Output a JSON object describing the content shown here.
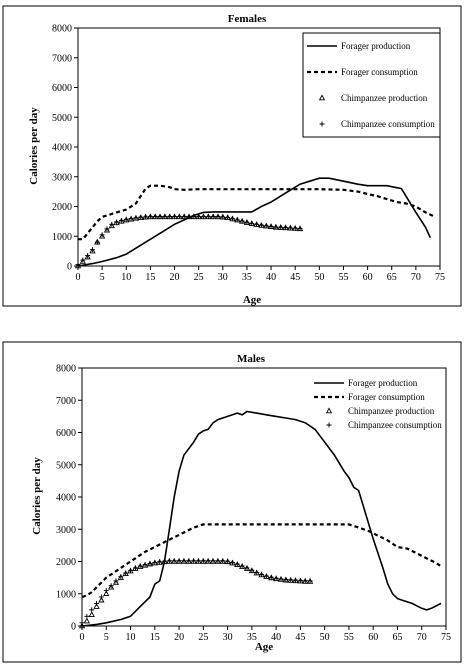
{
  "chart_data": [
    {
      "type": "line",
      "title": "Females",
      "xlabel": "Age",
      "ylabel": "Calories per day",
      "xlim": [
        0,
        75
      ],
      "ylim": [
        0,
        8000
      ],
      "xticks": [
        0,
        5,
        10,
        15,
        20,
        25,
        30,
        35,
        40,
        45,
        50,
        55,
        60,
        65,
        70,
        75
      ],
      "yticks": [
        0,
        1000,
        2000,
        3000,
        4000,
        5000,
        6000,
        7000,
        8000
      ],
      "grid": false,
      "legend_position": "top-right",
      "series": [
        {
          "name": "Forager production",
          "style": "solid",
          "x": [
            0,
            3,
            5,
            8,
            10,
            12,
            14,
            16,
            18,
            20,
            22,
            24,
            26,
            28,
            30,
            33,
            36,
            38,
            40,
            42,
            44,
            46,
            48,
            50,
            52,
            55,
            58,
            60,
            62,
            64,
            67,
            70,
            72,
            73
          ],
          "y": [
            0,
            80,
            150,
            280,
            400,
            600,
            800,
            1000,
            1200,
            1400,
            1550,
            1700,
            1800,
            1820,
            1820,
            1820,
            1820,
            2000,
            2150,
            2350,
            2550,
            2750,
            2850,
            2950,
            2950,
            2850,
            2750,
            2700,
            2700,
            2700,
            2600,
            1800,
            1300,
            950
          ]
        },
        {
          "name": "Forager consumption",
          "style": "dashed",
          "x": [
            0,
            1,
            2,
            3,
            4,
            5,
            6,
            8,
            10,
            12,
            13,
            14,
            15,
            17,
            19,
            20,
            22,
            25,
            30,
            35,
            40,
            45,
            50,
            55,
            58,
            60,
            62,
            64,
            66,
            68,
            70,
            72,
            74
          ],
          "y": [
            900,
            900,
            1100,
            1300,
            1500,
            1650,
            1700,
            1800,
            1900,
            2100,
            2350,
            2600,
            2700,
            2700,
            2650,
            2580,
            2560,
            2580,
            2580,
            2580,
            2580,
            2580,
            2580,
            2560,
            2500,
            2420,
            2350,
            2250,
            2150,
            2100,
            2000,
            1800,
            1650
          ]
        },
        {
          "name": "Chimpanzee production",
          "style": "triangle-markers",
          "x": [
            0,
            1,
            2,
            3,
            4,
            5,
            6,
            7,
            8,
            9,
            10,
            11,
            12,
            13,
            14,
            15,
            16,
            17,
            18,
            19,
            20,
            21,
            22,
            23,
            24,
            25,
            26,
            27,
            28,
            29,
            30,
            31,
            32,
            33,
            34,
            35,
            36,
            37,
            38,
            39,
            40,
            41,
            42,
            43,
            44,
            45,
            46
          ],
          "y": [
            0,
            150,
            300,
            500,
            800,
            1000,
            1200,
            1350,
            1450,
            1500,
            1540,
            1570,
            1600,
            1620,
            1640,
            1650,
            1650,
            1650,
            1650,
            1650,
            1650,
            1650,
            1650,
            1650,
            1650,
            1650,
            1650,
            1650,
            1650,
            1650,
            1640,
            1620,
            1580,
            1540,
            1500,
            1460,
            1420,
            1390,
            1360,
            1340,
            1320,
            1300,
            1290,
            1280,
            1270,
            1260,
            1250
          ]
        },
        {
          "name": "Chimpanzee consumption",
          "style": "plus-markers",
          "x": [
            0,
            1,
            2,
            3,
            4,
            5,
            6,
            7,
            8,
            9,
            10,
            11,
            12,
            13,
            14,
            15,
            16,
            17,
            18,
            19,
            20,
            21,
            22,
            23,
            24,
            25,
            26,
            27,
            28,
            29,
            30,
            31,
            32,
            33,
            34,
            35,
            36,
            37,
            38,
            39,
            40,
            41,
            42,
            43,
            44,
            45,
            46
          ],
          "y": [
            50,
            200,
            350,
            550,
            800,
            1050,
            1250,
            1400,
            1480,
            1530,
            1570,
            1600,
            1620,
            1640,
            1650,
            1660,
            1660,
            1660,
            1660,
            1660,
            1660,
            1660,
            1660,
            1660,
            1660,
            1660,
            1660,
            1660,
            1660,
            1660,
            1650,
            1630,
            1590,
            1550,
            1510,
            1470,
            1430,
            1400,
            1370,
            1350,
            1330,
            1310,
            1300,
            1290,
            1280,
            1270,
            1260
          ]
        }
      ]
    },
    {
      "type": "line",
      "title": "Males",
      "xlabel": "Age",
      "ylabel": "Calories per day",
      "xlim": [
        0,
        75
      ],
      "ylim": [
        0,
        8000
      ],
      "xticks": [
        0,
        5,
        10,
        15,
        20,
        25,
        30,
        35,
        40,
        45,
        50,
        55,
        60,
        65,
        70,
        75
      ],
      "yticks": [
        0,
        1000,
        2000,
        3000,
        4000,
        5000,
        6000,
        7000,
        8000
      ],
      "grid": false,
      "legend_position": "top-right",
      "series": [
        {
          "name": "Forager production",
          "style": "solid",
          "x": [
            0,
            3,
            5,
            8,
            10,
            12,
            14,
            15,
            16,
            17,
            18,
            19,
            20,
            21,
            22,
            23,
            24,
            25,
            26,
            27,
            28,
            30,
            31,
            32,
            33,
            34,
            36,
            38,
            40,
            42,
            44,
            46,
            48,
            50,
            52,
            54,
            55,
            56,
            57,
            58,
            60,
            62,
            63,
            64,
            65,
            66,
            68,
            70,
            71,
            72,
            74
          ],
          "y": [
            0,
            50,
            100,
            200,
            300,
            600,
            900,
            1300,
            1400,
            2000,
            3000,
            4000,
            4800,
            5300,
            5500,
            5700,
            5950,
            6050,
            6100,
            6300,
            6400,
            6500,
            6550,
            6600,
            6550,
            6650,
            6600,
            6550,
            6500,
            6450,
            6400,
            6300,
            6100,
            5700,
            5300,
            4800,
            4600,
            4300,
            4200,
            3700,
            2700,
            1800,
            1300,
            1000,
            850,
            800,
            700,
            550,
            500,
            550,
            700
          ]
        },
        {
          "name": "Forager consumption",
          "style": "dashed",
          "x": [
            0,
            1,
            2,
            3,
            4,
            5,
            7,
            9,
            11,
            13,
            15,
            17,
            19,
            21,
            23,
            25,
            30,
            35,
            40,
            45,
            50,
            55,
            57,
            59,
            61,
            63,
            65,
            67,
            69,
            71,
            73,
            74
          ],
          "y": [
            900,
            950,
            1050,
            1200,
            1350,
            1500,
            1700,
            1900,
            2100,
            2300,
            2450,
            2600,
            2750,
            2900,
            3050,
            3150,
            3150,
            3150,
            3150,
            3150,
            3150,
            3150,
            3050,
            2950,
            2800,
            2650,
            2450,
            2400,
            2250,
            2100,
            1950,
            1850
          ]
        },
        {
          "name": "Chimpanzee production",
          "style": "triangle-markers",
          "x": [
            0,
            1,
            2,
            3,
            4,
            5,
            6,
            7,
            8,
            9,
            10,
            11,
            12,
            13,
            14,
            15,
            16,
            17,
            18,
            19,
            20,
            21,
            22,
            23,
            24,
            25,
            26,
            27,
            28,
            29,
            30,
            31,
            32,
            33,
            34,
            35,
            36,
            37,
            38,
            39,
            40,
            41,
            42,
            43,
            44,
            45,
            46,
            47
          ],
          "y": [
            0,
            150,
            350,
            600,
            800,
            1000,
            1200,
            1350,
            1500,
            1620,
            1700,
            1780,
            1840,
            1880,
            1920,
            1950,
            1970,
            1990,
            2000,
            2000,
            2000,
            2000,
            2000,
            2000,
            2000,
            2000,
            2000,
            2000,
            2000,
            2000,
            1990,
            1950,
            1900,
            1840,
            1780,
            1710,
            1640,
            1580,
            1530,
            1490,
            1460,
            1440,
            1420,
            1410,
            1400,
            1390,
            1380,
            1380
          ]
        },
        {
          "name": "Chimpanzee consumption",
          "style": "plus-markers",
          "x": [
            0,
            1,
            2,
            3,
            4,
            5,
            6,
            7,
            8,
            9,
            10,
            11,
            12,
            13,
            14,
            15,
            16,
            17,
            18,
            19,
            20,
            21,
            22,
            23,
            24,
            25,
            26,
            27,
            28,
            29,
            30,
            31,
            32,
            33,
            34,
            35,
            36,
            37,
            38,
            39,
            40,
            41,
            42,
            43,
            44,
            45,
            46,
            47
          ],
          "y": [
            100,
            300,
            500,
            700,
            900,
            1100,
            1250,
            1400,
            1530,
            1640,
            1720,
            1800,
            1860,
            1900,
            1940,
            1970,
            1990,
            2010,
            2020,
            2020,
            2020,
            2020,
            2020,
            2020,
            2020,
            2020,
            2020,
            2020,
            2020,
            2020,
            2010,
            1970,
            1920,
            1860,
            1800,
            1730,
            1660,
            1600,
            1550,
            1510,
            1480,
            1460,
            1440,
            1430,
            1420,
            1410,
            1400,
            1400
          ]
        }
      ]
    }
  ]
}
